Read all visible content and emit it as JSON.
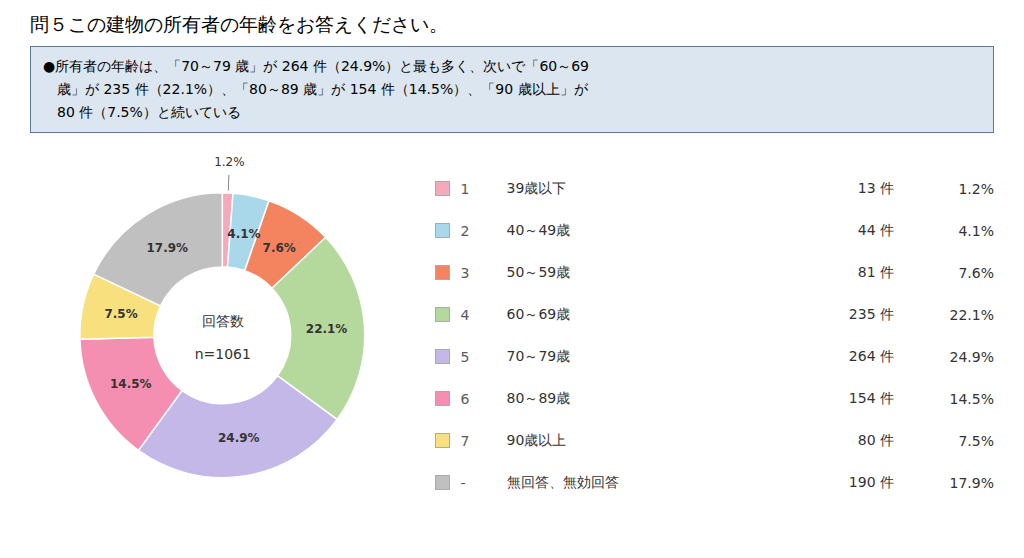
{
  "chart_data": {
    "type": "pie",
    "title": "問５この建物の所有者の年齢をお答えください。",
    "summary": [
      "●所有者の年齢は、「70～79 歳」が 264 件（24.9%）と最も多く、次いで「60～69",
      "　歳」が 235 件（22.1%）、「80～89 歳」が 154 件（14.5%）、「90 歳以上」が",
      "　80 件（7.5%）と続いている"
    ],
    "center_labels": [
      "回答数",
      "n=1061"
    ],
    "categories": [
      "39歳以下",
      "40～49歳",
      "50～59歳",
      "60～69歳",
      "70～79歳",
      "80～89歳",
      "90歳以上",
      "無回答、無効回答"
    ],
    "values": [
      1.2,
      4.1,
      7.6,
      22.1,
      24.9,
      14.5,
      7.5,
      17.9
    ],
    "value_labels": [
      "1.2%",
      "4.1%",
      "7.6%",
      "22.1%",
      "24.9%",
      "14.5%",
      "7.5%",
      "17.9%"
    ],
    "data_labels": true,
    "colors": [
      "#F4AABB",
      "#A8D8EA",
      "#F4845F",
      "#B5D99C",
      "#C3B8E8",
      "#F48FB1",
      "#F9E07F",
      "#C0C0C0"
    ],
    "numbers": [
      "1",
      "2",
      "3",
      "4",
      "5",
      "6",
      "7",
      "-"
    ],
    "counts": [
      13,
      44,
      81,
      235,
      264,
      154,
      80,
      190
    ],
    "count_labels": [
      "13 件",
      "44 件",
      "81 件",
      "235 件",
      "264 件",
      "154 件",
      "80 件",
      "190 件"
    ],
    "legend": "right"
  }
}
